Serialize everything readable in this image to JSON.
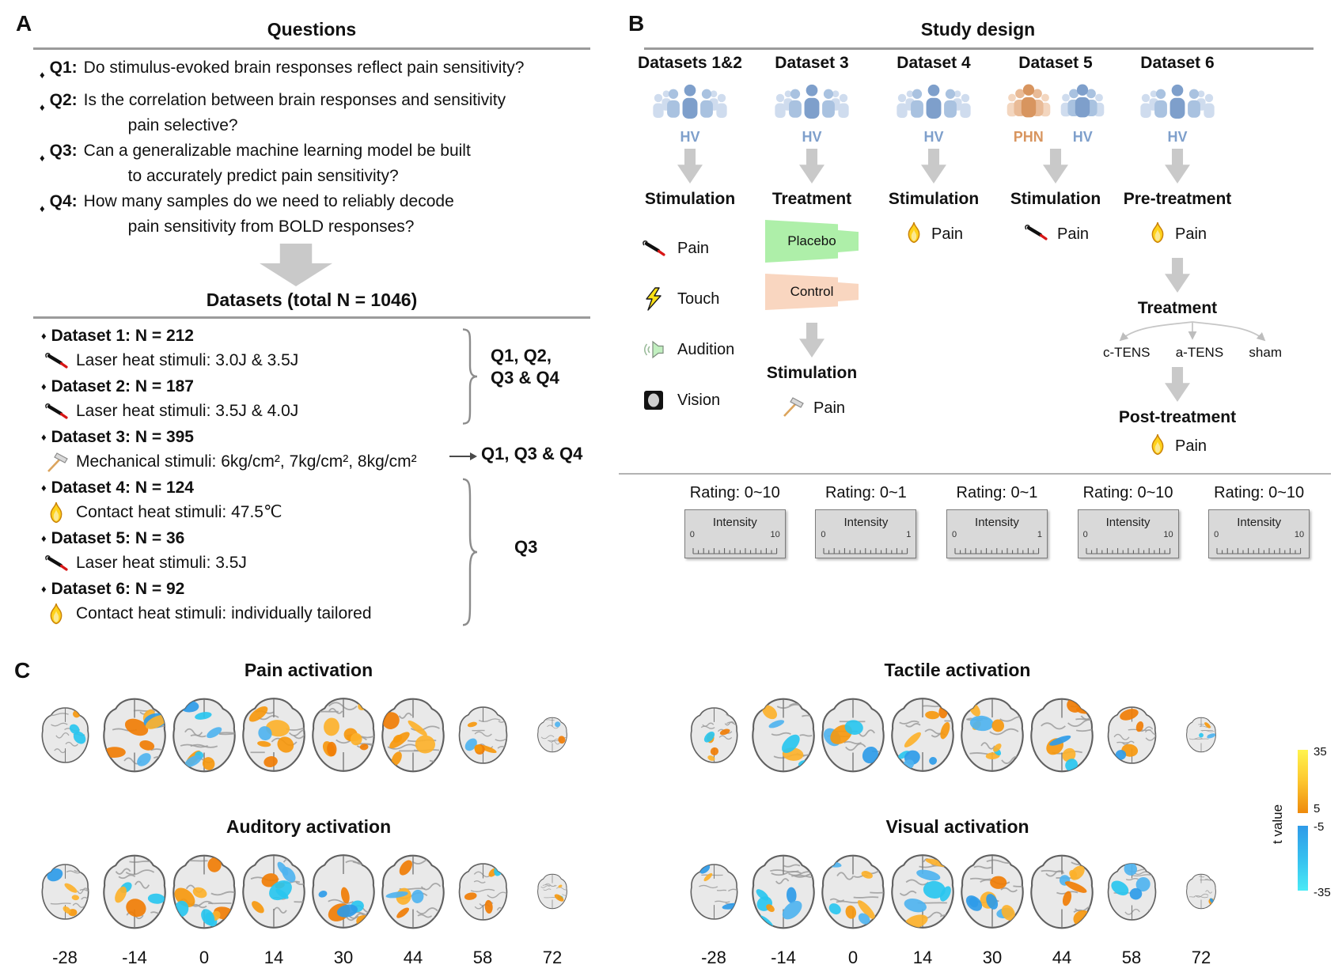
{
  "figure": {
    "panel_a_label": "A",
    "panel_b_label": "B",
    "panel_c_label": "C"
  },
  "panelA": {
    "title": "Questions",
    "bullet": "♦",
    "questions": [
      {
        "id": "Q1:",
        "lines": [
          "Do stimulus-evoked brain responses reflect pain sensitivity?"
        ]
      },
      {
        "id": "Q2:",
        "lines": [
          "Is the correlation between brain responses and sensitivity",
          "pain selective?"
        ]
      },
      {
        "id": "Q3:",
        "lines": [
          "Can a generalizable machine learning model be built",
          "to accurately predict pain sensitivity?"
        ]
      },
      {
        "id": "Q4:",
        "lines": [
          "How many samples do we need to reliably decode",
          "pain sensitivity from BOLD responses?"
        ]
      }
    ],
    "datasets_title": "Datasets (total N = 1046)",
    "datasets": [
      {
        "name": "Dataset 1: N = 212",
        "icon": "laser-icon",
        "stimuli": "Laser heat stimuli: 3.0J & 3.5J"
      },
      {
        "name": "Dataset 2: N = 187",
        "icon": "laser-icon",
        "stimuli": "Laser heat stimuli: 3.5J & 4.0J"
      },
      {
        "name": "Dataset 3: N = 395",
        "icon": "hammer-icon",
        "stimuli": "Mechanical stimuli: 6kg/cm², 7kg/cm², 8kg/cm²"
      },
      {
        "name": "Dataset 4: N = 124",
        "icon": "flame-icon",
        "stimuli": "Contact heat stimuli: 47.5℃"
      },
      {
        "name": "Dataset 5: N = 36",
        "icon": "laser-icon",
        "stimuli": "Laser heat stimuli: 3.5J"
      },
      {
        "name": "Dataset 6: N = 92",
        "icon": "flame-icon",
        "stimuli": "Contact heat stimuli: individually tailored"
      }
    ],
    "mappings": [
      {
        "target": "Datasets 1-2",
        "label_line1": "Q1, Q2,",
        "label_line2": "Q3 & Q4"
      },
      {
        "target": "Dataset 3",
        "label_line1": "Q1, Q3 & Q4"
      },
      {
        "target": "Datasets 4-6",
        "label_line1": "Q3"
      }
    ]
  },
  "panelB": {
    "title": "Study design",
    "intensity_label": "Intensity",
    "columns": [
      {
        "header": "Datasets 1&2",
        "groups": [
          {
            "label": "HV",
            "theme": "blue"
          }
        ],
        "phase": "Stimulation",
        "stimuli": [
          {
            "icon": "laser-icon",
            "label": "Pain"
          },
          {
            "icon": "lightning-icon",
            "label": "Touch"
          },
          {
            "icon": "speaker-icon",
            "label": "Audition"
          },
          {
            "icon": "vision-icon",
            "label": "Vision"
          }
        ],
        "rating": "Rating: 0~10",
        "scale": [
          "0",
          "10"
        ]
      },
      {
        "header": "Dataset 3",
        "groups": [
          {
            "label": "HV",
            "theme": "blue"
          }
        ],
        "phase": "Treatment",
        "treatments": [
          {
            "label": "Placebo",
            "theme": "green"
          },
          {
            "label": "Control",
            "theme": "peach"
          }
        ],
        "sub_phase": "Stimulation",
        "stimuli": [
          {
            "icon": "hammer-icon",
            "label": "Pain"
          }
        ],
        "rating": "Rating: 0~1",
        "scale": [
          "0",
          "1"
        ]
      },
      {
        "header": "Dataset 4",
        "groups": [
          {
            "label": "HV",
            "theme": "blue"
          }
        ],
        "phase": "Stimulation",
        "stimuli": [
          {
            "icon": "flame-icon",
            "label": "Pain"
          }
        ],
        "rating": "Rating: 0~1",
        "scale": [
          "0",
          "1"
        ]
      },
      {
        "header": "Dataset 5",
        "groups": [
          {
            "label": "PHN",
            "theme": "orange"
          },
          {
            "label": "HV",
            "theme": "blue"
          }
        ],
        "phase": "Stimulation",
        "stimuli": [
          {
            "icon": "laser-icon",
            "label": "Pain"
          }
        ],
        "rating": "Rating: 0~10",
        "scale": [
          "0",
          "10"
        ]
      },
      {
        "header": "Dataset 6",
        "groups": [
          {
            "label": "HV",
            "theme": "blue"
          }
        ],
        "phase": "Pre-treatment",
        "stimuli": [
          {
            "icon": "flame-icon",
            "label": "Pain"
          }
        ],
        "treatment_title": "Treatment",
        "treatment_options": [
          "c-TENS",
          "a-TENS",
          "sham"
        ],
        "post_phase": "Post-treatment",
        "post_stimulus": {
          "icon": "flame-icon",
          "label": "Pain"
        },
        "rating": "Rating: 0~10",
        "scale": [
          "0",
          "10"
        ]
      }
    ]
  },
  "panelC": {
    "maps": [
      {
        "title": "Pain activation"
      },
      {
        "title": "Auditory activation"
      },
      {
        "title": "Tactile activation"
      },
      {
        "title": "Visual activation"
      }
    ],
    "slice_coords": [
      "-28",
      "-14",
      "0",
      "14",
      "30",
      "44",
      "58",
      "72"
    ],
    "colorbar": {
      "label": "t value",
      "ticks": [
        "35",
        "5",
        "-5",
        "-35"
      ],
      "positive_colors": [
        "#FFF44E",
        "#EE8A0C"
      ],
      "negative_colors": [
        "#2F9BE8",
        "#4AEAF6"
      ]
    }
  }
}
